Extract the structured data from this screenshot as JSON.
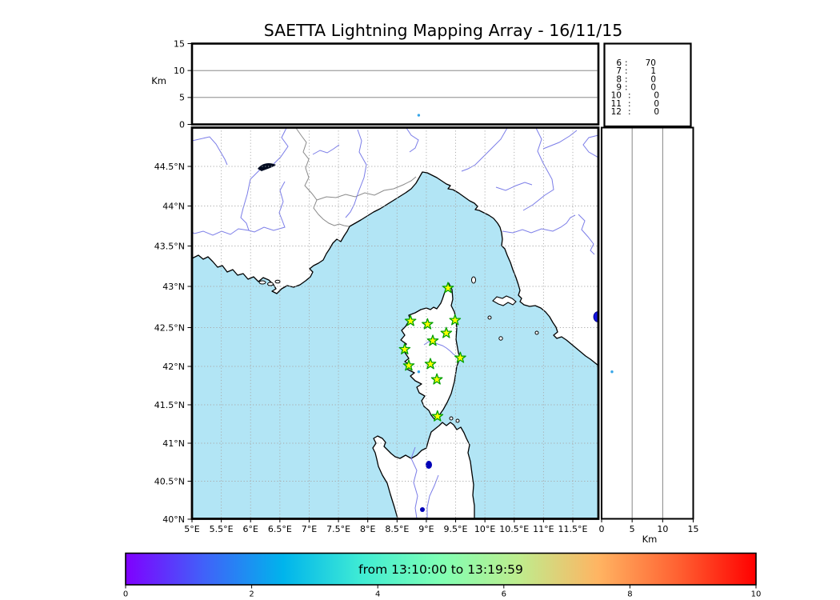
{
  "figure": {
    "title": "SAETTA Lightning Mapping Array - 16/11/15",
    "top_altitude_axis_label": "Km",
    "right_altitude_axis_label": "Km"
  },
  "chart_data": {
    "type": "scatter",
    "title": "SAETTA Lightning Mapping Array - 16/11/15",
    "projection": "mercator",
    "map": {
      "lon_range": [
        5.0,
        11.95
      ],
      "lat_range": [
        40.0,
        45.1
      ],
      "grid": "dashed",
      "lon_ticks": {
        "values": [
          5,
          5.5,
          6,
          6.5,
          7,
          7.5,
          8,
          8.5,
          9,
          9.5,
          10,
          10.5,
          11,
          11.5
        ],
        "labels": [
          "5°E",
          "5.5°E",
          "6°E",
          "6.5°E",
          "7°E",
          "7.5°E",
          "8°E",
          "8.5°E",
          "9°E",
          "9.5°E",
          "10°E",
          "10.5°E",
          "11°E",
          "11.5°E"
        ]
      },
      "lat_ticks": {
        "values": [
          40,
          40.5,
          41,
          41.5,
          42,
          42.5,
          43,
          43.5,
          44,
          44.5
        ],
        "labels": [
          "40°N",
          "40.5°N",
          "41°N",
          "41.5°N",
          "42°N",
          "42.5°N",
          "43°N",
          "43.5°N",
          "44°N",
          "44.5°N"
        ]
      },
      "sea_color": "#b2e5f5",
      "land_color": "#ffffff"
    },
    "altitude_axis": {
      "range_km": [
        0,
        15
      ],
      "tick_values": [
        0,
        5,
        10,
        15
      ],
      "tick_labels": [
        "0",
        "5",
        "10",
        "15"
      ],
      "label": "Km",
      "gridlines_km": [
        5,
        10
      ]
    },
    "stations": [
      {
        "lon": 9.37,
        "lat": 42.98
      },
      {
        "lon": 8.73,
        "lat": 42.58
      },
      {
        "lon": 9.02,
        "lat": 42.54
      },
      {
        "lon": 9.49,
        "lat": 42.59
      },
      {
        "lon": 9.34,
        "lat": 42.43
      },
      {
        "lon": 9.11,
        "lat": 42.33
      },
      {
        "lon": 8.63,
        "lat": 42.22
      },
      {
        "lon": 9.58,
        "lat": 42.11
      },
      {
        "lon": 8.7,
        "lat": 42.01
      },
      {
        "lon": 9.07,
        "lat": 42.03
      },
      {
        "lon": 9.18,
        "lat": 41.83
      },
      {
        "lon": 9.19,
        "lat": 41.35
      }
    ],
    "station_marker": {
      "shape": "star",
      "fill": "#ffff00",
      "stroke": "#00a000"
    },
    "lightning_sources": [
      {
        "lon": 8.87,
        "lat": 41.93,
        "alt_km": 1.7,
        "color": "#35a5e8"
      }
    ],
    "station_count_table": {
      "rows": [
        {
          "stations": 6,
          "count": 70,
          "color": "#000000"
        },
        {
          "stations": 7,
          "count": 1,
          "color": "#ff0000"
        },
        {
          "stations": 8,
          "count": 0,
          "color": "#000000"
        },
        {
          "stations": 9,
          "count": 0,
          "color": "#000000"
        },
        {
          "stations": 10,
          "count": 0,
          "color": "#000000"
        },
        {
          "stations": 11,
          "count": 0,
          "color": "#000000"
        },
        {
          "stations": 12,
          "count": 0,
          "color": "#000000"
        }
      ]
    },
    "colorbar": {
      "label": "from 13:10:00 to 13:19:59",
      "time_window": {
        "from": "13:10:00",
        "to": "13:19:59"
      },
      "tick_values": [
        0,
        2,
        4,
        6,
        8,
        10
      ],
      "tick_labels": [
        "0",
        "2",
        "4",
        "6",
        "8",
        "10"
      ],
      "colormap": "rainbow",
      "gradient_stops": [
        "#8000ff",
        "#4062f9",
        "#00b4ec",
        "#40ecd4",
        "#80ffb4",
        "#bfec8d",
        "#ffb462",
        "#ff6232",
        "#ff0000"
      ]
    }
  }
}
